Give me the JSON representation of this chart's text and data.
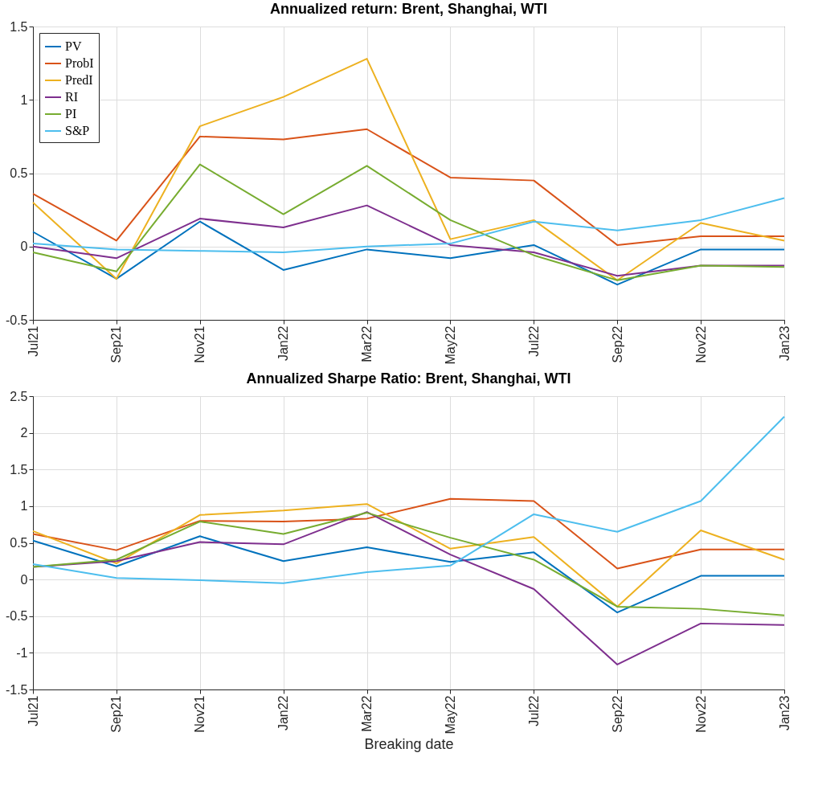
{
  "chart_data": [
    {
      "type": "line",
      "title": "Annualized return: Brent, Shanghai, WTI",
      "categories": [
        "Jul21",
        "Sep21",
        "Nov21",
        "Jan22",
        "Mar22",
        "May22",
        "Jul22",
        "Sep22",
        "Nov22",
        "Jan23"
      ],
      "ylim": [
        -0.5,
        1.5
      ],
      "yticks": [
        -0.5,
        0,
        0.5,
        1,
        1.5
      ],
      "grid": true,
      "legend": "top left",
      "series": [
        {
          "name": "PV",
          "color": "#0072bd",
          "values": [
            0.1,
            -0.22,
            0.17,
            -0.16,
            -0.02,
            -0.08,
            0.01,
            -0.26,
            -0.02,
            -0.02
          ]
        },
        {
          "name": "ProbI",
          "color": "#d95319",
          "values": [
            0.36,
            0.04,
            0.75,
            0.73,
            0.8,
            0.47,
            0.45,
            0.01,
            0.07,
            0.07
          ]
        },
        {
          "name": "PredI",
          "color": "#edb120",
          "values": [
            0.3,
            -0.22,
            0.82,
            1.02,
            1.28,
            0.05,
            0.18,
            -0.23,
            0.16,
            0.04
          ]
        },
        {
          "name": "RI",
          "color": "#7e2f8e",
          "values": [
            0.0,
            -0.08,
            0.19,
            0.13,
            0.28,
            0.01,
            -0.04,
            -0.2,
            -0.13,
            -0.13
          ]
        },
        {
          "name": "PI",
          "color": "#77ac30",
          "values": [
            -0.04,
            -0.17,
            0.56,
            0.22,
            0.55,
            0.18,
            -0.06,
            -0.23,
            -0.13,
            -0.14
          ]
        },
        {
          "name": "S&P",
          "color": "#4dbeee",
          "values": [
            0.02,
            -0.02,
            -0.03,
            -0.04,
            0.0,
            0.02,
            0.17,
            0.11,
            0.18,
            0.33
          ]
        }
      ]
    },
    {
      "type": "line",
      "title": "Annualized Sharpe Ratio: Brent, Shanghai, WTI",
      "xlabel": "Breaking date",
      "categories": [
        "Jul21",
        "Sep21",
        "Nov21",
        "Jan22",
        "Mar22",
        "May22",
        "Jul22",
        "Sep22",
        "Nov22",
        "Jan23"
      ],
      "ylim": [
        -1.5,
        2.5
      ],
      "yticks": [
        -1.5,
        -1,
        -0.5,
        0,
        0.5,
        1,
        1.5,
        2,
        2.5
      ],
      "grid": true,
      "legend": "top left",
      "series": [
        {
          "name": "PV",
          "color": "#0072bd",
          "values": [
            0.53,
            0.18,
            0.59,
            0.25,
            0.44,
            0.24,
            0.37,
            -0.45,
            0.05,
            0.05
          ]
        },
        {
          "name": "ProbI",
          "color": "#d95319",
          "values": [
            0.62,
            0.4,
            0.8,
            0.79,
            0.83,
            1.1,
            1.07,
            0.15,
            0.41,
            0.41
          ]
        },
        {
          "name": "PredI",
          "color": "#edb120",
          "values": [
            0.66,
            0.22,
            0.88,
            0.94,
            1.03,
            0.42,
            0.58,
            -0.37,
            0.67,
            0.27
          ]
        },
        {
          "name": "RI",
          "color": "#7e2f8e",
          "values": [
            0.17,
            0.25,
            0.51,
            0.48,
            0.92,
            0.34,
            -0.13,
            -1.16,
            -0.6,
            -0.62
          ]
        },
        {
          "name": "PI",
          "color": "#77ac30",
          "values": [
            0.17,
            0.27,
            0.79,
            0.62,
            0.91,
            0.57,
            0.27,
            -0.37,
            -0.4,
            -0.49
          ]
        },
        {
          "name": "S&P",
          "color": "#4dbeee",
          "values": [
            0.21,
            0.02,
            -0.01,
            -0.05,
            0.1,
            0.19,
            0.89,
            0.65,
            1.07,
            2.22
          ]
        }
      ]
    }
  ]
}
